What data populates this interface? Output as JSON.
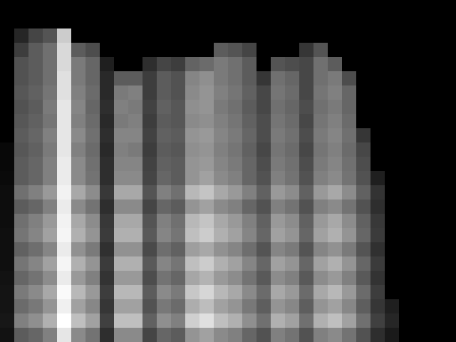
{
  "chart_data": {
    "type": "heatmap",
    "tick_labels": false,
    "zlim": [
      0,
      100
    ],
    "cells": [
      [
        0,
        0,
        0,
        0,
        0,
        0,
        0,
        0,
        0,
        0,
        0,
        0,
        0,
        0,
        0,
        0,
        0,
        0,
        0,
        0,
        0,
        0,
        0,
        0,
        0,
        0,
        0,
        0,
        0,
        0,
        0,
        0
      ],
      [
        0,
        0,
        0,
        0,
        0,
        0,
        0,
        0,
        0,
        0,
        0,
        0,
        0,
        0,
        0,
        0,
        0,
        0,
        0,
        0,
        0,
        0,
        0,
        0,
        0,
        0,
        0,
        0,
        0,
        0,
        0,
        0
      ],
      [
        0,
        15,
        27,
        33,
        80,
        0,
        0,
        0,
        0,
        0,
        0,
        0,
        0,
        0,
        0,
        0,
        0,
        0,
        0,
        0,
        0,
        0,
        0,
        0,
        0,
        0,
        0,
        0,
        0,
        0,
        0,
        0
      ],
      [
        0,
        24,
        36,
        44,
        85,
        36,
        30,
        0,
        0,
        0,
        0,
        0,
        0,
        0,
        0,
        36,
        33,
        27,
        0,
        0,
        0,
        21,
        33,
        0,
        0,
        0,
        0,
        0,
        0,
        0,
        0,
        0
      ],
      [
        0,
        32,
        36,
        44,
        85,
        48,
        40,
        12,
        0,
        0,
        18,
        27,
        24,
        39,
        42,
        48,
        44,
        36,
        0,
        33,
        30,
        28,
        44,
        36,
        0,
        0,
        0,
        0,
        0,
        0,
        0,
        0
      ],
      [
        0,
        32,
        36,
        44,
        88,
        48,
        40,
        16,
        36,
        36,
        24,
        36,
        32,
        52,
        56,
        48,
        44,
        36,
        21,
        44,
        40,
        28,
        44,
        48,
        30,
        0,
        0,
        0,
        0,
        0,
        0,
        0
      ],
      [
        0,
        34,
        38,
        46,
        88,
        50,
        42,
        16,
        48,
        50,
        24,
        36,
        32,
        54,
        58,
        50,
        46,
        38,
        28,
        46,
        42,
        28,
        46,
        50,
        40,
        0,
        0,
        0,
        0,
        0,
        0,
        0
      ],
      [
        0,
        32,
        36,
        48,
        90,
        52,
        40,
        18,
        50,
        48,
        26,
        38,
        34,
        56,
        58,
        48,
        44,
        36,
        28,
        44,
        40,
        30,
        44,
        48,
        40,
        0,
        0,
        0,
        0,
        0,
        0,
        0
      ],
      [
        0,
        34,
        38,
        46,
        90,
        50,
        42,
        16,
        48,
        50,
        24,
        36,
        34,
        54,
        56,
        50,
        46,
        38,
        30,
        46,
        42,
        28,
        46,
        50,
        42,
        0,
        0,
        0,
        0,
        0,
        0,
        0
      ],
      [
        0,
        36,
        40,
        50,
        90,
        54,
        44,
        18,
        52,
        52,
        26,
        38,
        36,
        58,
        60,
        52,
        48,
        40,
        30,
        48,
        44,
        30,
        48,
        52,
        44,
        21,
        0,
        0,
        0,
        0,
        0,
        0
      ],
      [
        3,
        34,
        38,
        48,
        90,
        50,
        42,
        16,
        50,
        48,
        24,
        36,
        34,
        56,
        58,
        50,
        46,
        38,
        28,
        46,
        42,
        28,
        46,
        50,
        42,
        28,
        0,
        0,
        0,
        0,
        0,
        0
      ],
      [
        3,
        36,
        40,
        50,
        92,
        54,
        44,
        18,
        52,
        52,
        26,
        38,
        36,
        58,
        60,
        52,
        48,
        40,
        30,
        48,
        44,
        30,
        48,
        52,
        44,
        30,
        0,
        0,
        0,
        0,
        0,
        0
      ],
      [
        4,
        36,
        40,
        50,
        92,
        54,
        45,
        18,
        54,
        54,
        27,
        40,
        36,
        58,
        63,
        54,
        50,
        40,
        32,
        50,
        45,
        32,
        50,
        54,
        45,
        32,
        12,
        0,
        0,
        0,
        0,
        0
      ],
      [
        5,
        44,
        50,
        60,
        95,
        66,
        55,
        22,
        66,
        66,
        33,
        50,
        44,
        72,
        77,
        66,
        60,
        50,
        38,
        60,
        55,
        38,
        60,
        66,
        55,
        38,
        20,
        0,
        0,
        0,
        0,
        0
      ],
      [
        5,
        36,
        40,
        50,
        92,
        54,
        45,
        18,
        54,
        54,
        27,
        40,
        36,
        58,
        63,
        54,
        50,
        40,
        32,
        50,
        45,
        32,
        50,
        54,
        45,
        32,
        18,
        0,
        0,
        0,
        0,
        0
      ],
      [
        5,
        44,
        50,
        60,
        95,
        66,
        55,
        22,
        66,
        66,
        33,
        50,
        44,
        72,
        77,
        66,
        60,
        50,
        38,
        60,
        55,
        38,
        60,
        66,
        55,
        38,
        22,
        0,
        0,
        0,
        0,
        0
      ],
      [
        6,
        46,
        52,
        63,
        96,
        69,
        58,
        23,
        69,
        69,
        35,
        52,
        46,
        75,
        80,
        69,
        63,
        52,
        40,
        63,
        58,
        40,
        63,
        69,
        58,
        40,
        23,
        0,
        0,
        0,
        0,
        0
      ],
      [
        6,
        38,
        43,
        52,
        92,
        57,
        48,
        19,
        57,
        57,
        29,
        43,
        38,
        62,
        66,
        57,
        52,
        43,
        33,
        52,
        48,
        33,
        52,
        57,
        48,
        33,
        19,
        0,
        0,
        0,
        0,
        0
      ],
      [
        6,
        46,
        52,
        63,
        96,
        69,
        58,
        23,
        69,
        69,
        35,
        52,
        46,
        75,
        80,
        69,
        63,
        52,
        40,
        63,
        58,
        40,
        63,
        69,
        58,
        40,
        23,
        0,
        0,
        0,
        0,
        0
      ],
      [
        7,
        40,
        45,
        55,
        92,
        60,
        50,
        20,
        60,
        60,
        30,
        45,
        40,
        65,
        70,
        60,
        55,
        45,
        35,
        55,
        50,
        35,
        55,
        60,
        50,
        35,
        20,
        0,
        0,
        0,
        0,
        0
      ],
      [
        8,
        48,
        54,
        66,
        98,
        72,
        60,
        24,
        72,
        72,
        36,
        54,
        48,
        78,
        84,
        72,
        66,
        54,
        42,
        66,
        60,
        42,
        66,
        72,
        60,
        42,
        24,
        0,
        0,
        0,
        0,
        0
      ],
      [
        8,
        42,
        47,
        58,
        94,
        63,
        53,
        21,
        63,
        63,
        32,
        47,
        42,
        68,
        74,
        63,
        58,
        47,
        37,
        58,
        53,
        37,
        58,
        63,
        53,
        37,
        21,
        12,
        0,
        0,
        0,
        0
      ],
      [
        9,
        50,
        56,
        69,
        100,
        75,
        63,
        25,
        75,
        75,
        38,
        56,
        50,
        81,
        88,
        75,
        69,
        56,
        44,
        69,
        63,
        44,
        69,
        75,
        63,
        44,
        25,
        15,
        0,
        0,
        0,
        0
      ],
      [
        7,
        36,
        40,
        50,
        90,
        54,
        45,
        18,
        54,
        54,
        27,
        40,
        36,
        58,
        63,
        54,
        50,
        40,
        32,
        50,
        45,
        32,
        50,
        54,
        45,
        32,
        18,
        10,
        0,
        0,
        0,
        0
      ]
    ]
  }
}
